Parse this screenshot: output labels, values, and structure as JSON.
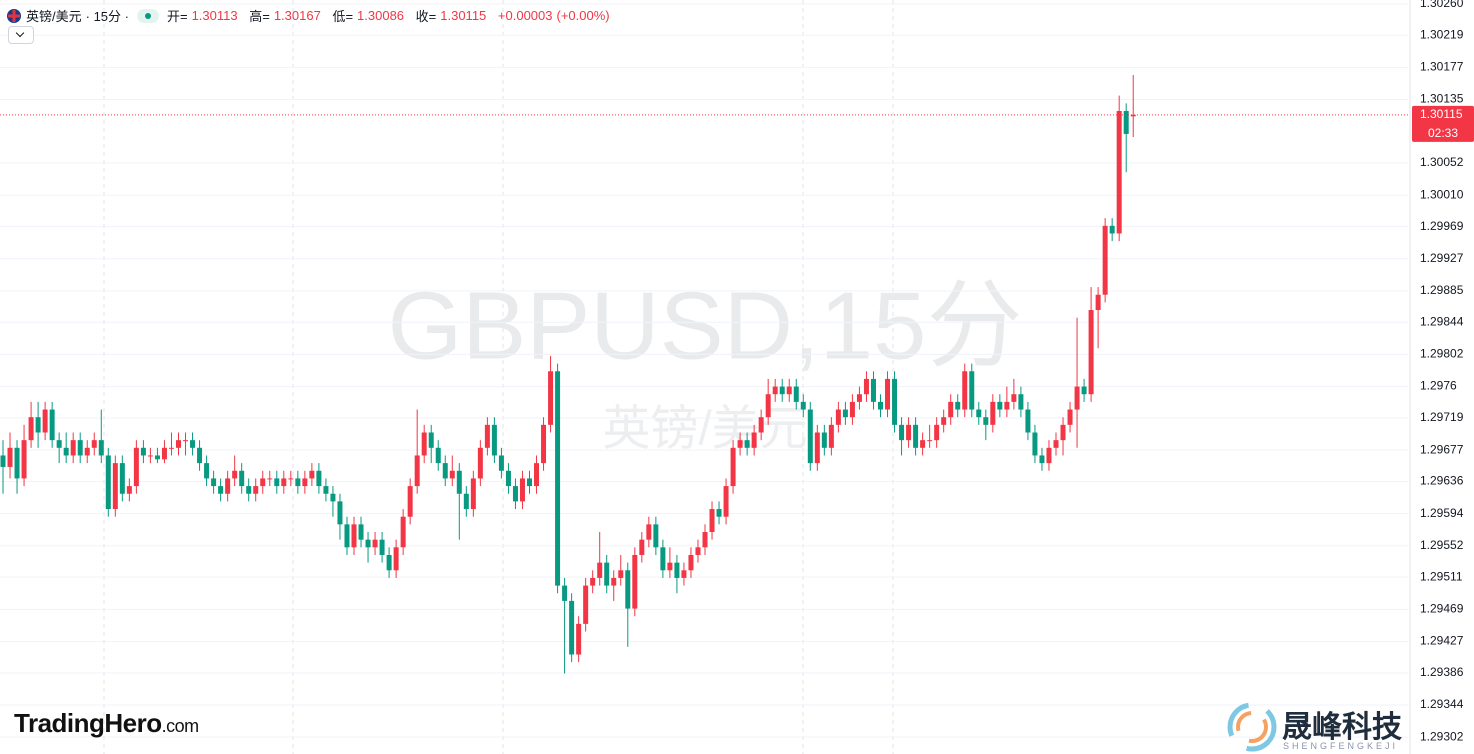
{
  "chart_data": {
    "type": "candlestick",
    "symbol": "英镑/美元",
    "interval": "· 15分 ·",
    "ohlc_labels": [
      "开=",
      "高=",
      "低=",
      "收="
    ],
    "header_values": [
      1.30113,
      1.30167,
      1.30086,
      1.30115
    ],
    "change": {
      "value": 3e-05,
      "label": "+0.00003"
    },
    "change_pct": {
      "value": 0,
      "label": "(+0.00%)"
    },
    "watermark": "GBPUSD,15分",
    "watermark_sub": "英镑/美元",
    "last_price": 1.30115,
    "countdown": "02:33",
    "up_color": "#f23645",
    "down_color": "#089981",
    "ylim": [
      1.2928,
      1.30265
    ],
    "yticks": [
      {
        "value": 1.3026,
        "label": "1.30260"
      },
      1.30219,
      1.30177,
      1.30135,
      1.30052,
      {
        "value": 1.3001,
        "label": "1.30010"
      },
      1.29969,
      1.29927,
      1.29885,
      1.29844,
      1.29802,
      1.2976,
      1.29719,
      1.29677,
      1.29636,
      1.29594,
      1.29552,
      1.29511,
      1.29469,
      1.29427,
      1.29386,
      1.29344,
      1.29302
    ],
    "grid": true,
    "brand_left": "TradingHero",
    "brand_left_suffix": ".com",
    "brand_right": "晟峰科技",
    "brand_right_sub": "SHENGFENGKEJI",
    "candles": [
      [
        1.2967,
        1.2969,
        1.2962,
        1.29655
      ],
      [
        1.29655,
        1.297,
        1.2964,
        1.2968
      ],
      [
        1.2968,
        1.2969,
        1.2962,
        1.2964
      ],
      [
        1.2964,
        1.2971,
        1.2963,
        1.2969
      ],
      [
        1.2969,
        1.2974,
        1.2968,
        1.2972
      ],
      [
        1.2972,
        1.2974,
        1.2968,
        1.297
      ],
      [
        1.297,
        1.2974,
        1.2969,
        1.2973
      ],
      [
        1.2973,
        1.2974,
        1.2968,
        1.2969
      ],
      [
        1.2969,
        1.297,
        1.2966,
        1.2968
      ],
      [
        1.2968,
        1.297,
        1.2966,
        1.2967
      ],
      [
        1.2967,
        1.297,
        1.2966,
        1.2969
      ],
      [
        1.2969,
        1.297,
        1.2966,
        1.2967
      ],
      [
        1.2967,
        1.2969,
        1.2966,
        1.2968
      ],
      [
        1.2968,
        1.297,
        1.2967,
        1.2969
      ],
      [
        1.2969,
        1.2973,
        1.2966,
        1.2967
      ],
      [
        1.2967,
        1.2968,
        1.2959,
        1.296
      ],
      [
        1.296,
        1.2967,
        1.2959,
        1.2966
      ],
      [
        1.2966,
        1.2967,
        1.2961,
        1.2962
      ],
      [
        1.2962,
        1.2964,
        1.2961,
        1.2963
      ],
      [
        1.2963,
        1.2969,
        1.2962,
        1.2968
      ],
      [
        1.2968,
        1.2969,
        1.2966,
        1.2967
      ],
      [
        1.2967,
        1.2968,
        1.2966,
        1.2967
      ],
      [
        1.2967,
        1.2968,
        1.2966,
        1.29665
      ],
      [
        1.29665,
        1.2969,
        1.2966,
        1.2968
      ],
      [
        1.2968,
        1.297,
        1.2967,
        1.2968
      ],
      [
        1.2968,
        1.297,
        1.2967,
        1.2969
      ],
      [
        1.2969,
        1.297,
        1.2967,
        1.2969
      ],
      [
        1.2969,
        1.297,
        1.2967,
        1.2968
      ],
      [
        1.2968,
        1.2969,
        1.2965,
        1.2966
      ],
      [
        1.2966,
        1.2967,
        1.2963,
        1.2964
      ],
      [
        1.2964,
        1.2965,
        1.2962,
        1.2963
      ],
      [
        1.2963,
        1.2964,
        1.2961,
        1.2962
      ],
      [
        1.2962,
        1.2965,
        1.2961,
        1.2964
      ],
      [
        1.2964,
        1.2967,
        1.2963,
        1.2965
      ],
      [
        1.2965,
        1.2966,
        1.2962,
        1.2963
      ],
      [
        1.2963,
        1.2964,
        1.2961,
        1.2962
      ],
      [
        1.2962,
        1.2964,
        1.2961,
        1.2963
      ],
      [
        1.2963,
        1.2965,
        1.2962,
        1.2964
      ],
      [
        1.2964,
        1.2965,
        1.2963,
        1.2964
      ],
      [
        1.2964,
        1.2965,
        1.2962,
        1.2963
      ],
      [
        1.2963,
        1.2965,
        1.2962,
        1.2964
      ],
      [
        1.2964,
        1.2965,
        1.2963,
        1.2964
      ],
      [
        1.2964,
        1.2965,
        1.2962,
        1.2963
      ],
      [
        1.2963,
        1.2965,
        1.2962,
        1.2964
      ],
      [
        1.2964,
        1.2966,
        1.2963,
        1.2965
      ],
      [
        1.2965,
        1.2966,
        1.2962,
        1.2963
      ],
      [
        1.2963,
        1.2964,
        1.2961,
        1.2962
      ],
      [
        1.2962,
        1.2963,
        1.2959,
        1.2961
      ],
      [
        1.2961,
        1.2962,
        1.2956,
        1.2958
      ],
      [
        1.2958,
        1.2959,
        1.2954,
        1.2955
      ],
      [
        1.2955,
        1.2959,
        1.2954,
        1.2958
      ],
      [
        1.2958,
        1.2959,
        1.2955,
        1.2956
      ],
      [
        1.2956,
        1.2957,
        1.2953,
        1.2955
      ],
      [
        1.2955,
        1.2957,
        1.2954,
        1.2956
      ],
      [
        1.2956,
        1.2957,
        1.2953,
        1.2954
      ],
      [
        1.2954,
        1.2955,
        1.2951,
        1.2952
      ],
      [
        1.2952,
        1.2956,
        1.2951,
        1.2955
      ],
      [
        1.2955,
        1.296,
        1.2954,
        1.2959
      ],
      [
        1.2959,
        1.2964,
        1.2958,
        1.2963
      ],
      [
        1.2963,
        1.2973,
        1.2962,
        1.2967
      ],
      [
        1.2967,
        1.2971,
        1.2966,
        1.297
      ],
      [
        1.297,
        1.2971,
        1.2966,
        1.2968
      ],
      [
        1.2968,
        1.2969,
        1.2965,
        1.2966
      ],
      [
        1.2966,
        1.2967,
        1.2963,
        1.2964
      ],
      [
        1.2964,
        1.2967,
        1.2963,
        1.2965
      ],
      [
        1.2965,
        1.2966,
        1.2956,
        1.2962
      ],
      [
        1.2962,
        1.2963,
        1.2959,
        1.296
      ],
      [
        1.296,
        1.2965,
        1.2959,
        1.2964
      ],
      [
        1.2964,
        1.2969,
        1.2963,
        1.2968
      ],
      [
        1.2968,
        1.2972,
        1.2967,
        1.2971
      ],
      [
        1.2971,
        1.2972,
        1.2966,
        1.2967
      ],
      [
        1.2967,
        1.2968,
        1.2964,
        1.2965
      ],
      [
        1.2965,
        1.2966,
        1.2962,
        1.2963
      ],
      [
        1.2963,
        1.2964,
        1.296,
        1.2961
      ],
      [
        1.2961,
        1.2965,
        1.296,
        1.2964
      ],
      [
        1.2964,
        1.2965,
        1.2962,
        1.2963
      ],
      [
        1.2963,
        1.2967,
        1.2962,
        1.2966
      ],
      [
        1.2966,
        1.2972,
        1.2965,
        1.2971
      ],
      [
        1.2971,
        1.298,
        1.297,
        1.2978
      ],
      [
        1.2978,
        1.2979,
        1.2949,
        1.295
      ],
      [
        1.295,
        1.2951,
        1.29385,
        1.2948
      ],
      [
        1.2948,
        1.2949,
        1.294,
        1.2941
      ],
      [
        1.2941,
        1.2946,
        1.294,
        1.2945
      ],
      [
        1.2945,
        1.2951,
        1.2944,
        1.295
      ],
      [
        1.295,
        1.2952,
        1.2949,
        1.2951
      ],
      [
        1.2951,
        1.2957,
        1.295,
        1.2953
      ],
      [
        1.2953,
        1.2954,
        1.2949,
        1.295
      ],
      [
        1.295,
        1.2952,
        1.2948,
        1.2951
      ],
      [
        1.2951,
        1.2954,
        1.295,
        1.2952
      ],
      [
        1.2952,
        1.2953,
        1.2942,
        1.2947
      ],
      [
        1.2947,
        1.2955,
        1.2946,
        1.2954
      ],
      [
        1.2954,
        1.2957,
        1.2953,
        1.2956
      ],
      [
        1.2956,
        1.2959,
        1.2955,
        1.2958
      ],
      [
        1.2958,
        1.2959,
        1.2954,
        1.2955
      ],
      [
        1.2955,
        1.2956,
        1.2951,
        1.2952
      ],
      [
        1.2952,
        1.2955,
        1.2951,
        1.2953
      ],
      [
        1.2953,
        1.2954,
        1.2949,
        1.2951
      ],
      [
        1.2951,
        1.2953,
        1.295,
        1.2952
      ],
      [
        1.2952,
        1.2955,
        1.2951,
        1.2954
      ],
      [
        1.2954,
        1.2956,
        1.2953,
        1.2955
      ],
      [
        1.2955,
        1.2958,
        1.2954,
        1.2957
      ],
      [
        1.2957,
        1.2961,
        1.2956,
        1.296
      ],
      [
        1.296,
        1.2961,
        1.2958,
        1.2959
      ],
      [
        1.2959,
        1.2964,
        1.2958,
        1.2963
      ],
      [
        1.2963,
        1.2969,
        1.2962,
        1.2968
      ],
      [
        1.2968,
        1.297,
        1.2967,
        1.2969
      ],
      [
        1.2969,
        1.297,
        1.2967,
        1.2968
      ],
      [
        1.2968,
        1.2971,
        1.2967,
        1.297
      ],
      [
        1.297,
        1.2973,
        1.2969,
        1.2972
      ],
      [
        1.2972,
        1.2977,
        1.2971,
        1.2975
      ],
      [
        1.2975,
        1.2977,
        1.2974,
        1.2976
      ],
      [
        1.2976,
        1.2977,
        1.2974,
        1.2975
      ],
      [
        1.2975,
        1.2977,
        1.2974,
        1.2976
      ],
      [
        1.2976,
        1.2977,
        1.2973,
        1.2974
      ],
      [
        1.2974,
        1.2975,
        1.2972,
        1.2973
      ],
      [
        1.2973,
        1.2974,
        1.2965,
        1.2966
      ],
      [
        1.2966,
        1.2971,
        1.2965,
        1.297
      ],
      [
        1.297,
        1.2971,
        1.2967,
        1.2968
      ],
      [
        1.2968,
        1.2972,
        1.2967,
        1.2971
      ],
      [
        1.2971,
        1.2974,
        1.297,
        1.2973
      ],
      [
        1.2973,
        1.2974,
        1.2971,
        1.2972
      ],
      [
        1.2972,
        1.2975,
        1.2971,
        1.2974
      ],
      [
        1.2974,
        1.2976,
        1.2973,
        1.2975
      ],
      [
        1.2975,
        1.2978,
        1.2974,
        1.2977
      ],
      [
        1.2977,
        1.2978,
        1.2973,
        1.2974
      ],
      [
        1.2974,
        1.2975,
        1.2972,
        1.2973
      ],
      [
        1.2973,
        1.2978,
        1.2972,
        1.2977
      ],
      [
        1.2977,
        1.2978,
        1.297,
        1.2971
      ],
      [
        1.2971,
        1.2972,
        1.2967,
        1.2969
      ],
      [
        1.2969,
        1.2972,
        1.2968,
        1.2971
      ],
      [
        1.2971,
        1.2972,
        1.2967,
        1.2968
      ],
      [
        1.2968,
        1.297,
        1.2967,
        1.2969
      ],
      [
        1.2969,
        1.2971,
        1.2968,
        1.2969
      ],
      [
        1.2969,
        1.2972,
        1.2968,
        1.2971
      ],
      [
        1.2971,
        1.2973,
        1.297,
        1.2972
      ],
      [
        1.2972,
        1.2975,
        1.2971,
        1.2974
      ],
      [
        1.2974,
        1.2975,
        1.2972,
        1.2973
      ],
      [
        1.2973,
        1.2979,
        1.2972,
        1.2978
      ],
      [
        1.2978,
        1.2979,
        1.2972,
        1.2973
      ],
      [
        1.2973,
        1.2974,
        1.2971,
        1.2972
      ],
      [
        1.2972,
        1.2973,
        1.2969,
        1.2971
      ],
      [
        1.2971,
        1.2975,
        1.297,
        1.2974
      ],
      [
        1.2974,
        1.2975,
        1.2972,
        1.2973
      ],
      [
        1.2973,
        1.2976,
        1.2972,
        1.2974
      ],
      [
        1.2974,
        1.2977,
        1.2973,
        1.2975
      ],
      [
        1.2975,
        1.2976,
        1.2972,
        1.2973
      ],
      [
        1.2973,
        1.2974,
        1.2969,
        1.297
      ],
      [
        1.297,
        1.2971,
        1.2966,
        1.2967
      ],
      [
        1.2967,
        1.2968,
        1.2965,
        1.2966
      ],
      [
        1.2966,
        1.2969,
        1.2965,
        1.2968
      ],
      [
        1.2968,
        1.297,
        1.2967,
        1.2969
      ],
      [
        1.2969,
        1.2972,
        1.2967,
        1.2971
      ],
      [
        1.2971,
        1.2974,
        1.297,
        1.2973
      ],
      [
        1.2973,
        1.2985,
        1.2968,
        1.2976
      ],
      [
        1.2976,
        1.2977,
        1.2974,
        1.2975
      ],
      [
        1.2975,
        1.2989,
        1.2974,
        1.2986
      ],
      [
        1.2986,
        1.2989,
        1.2981,
        1.2988
      ],
      [
        1.2988,
        1.2998,
        1.2987,
        1.2997
      ],
      [
        1.2997,
        1.2998,
        1.2995,
        1.2996
      ],
      [
        1.2996,
        1.3014,
        1.2995,
        1.3012
      ],
      [
        1.3012,
        1.3013,
        1.3004,
        1.3009
      ],
      [
        1.30113,
        1.30167,
        1.30086,
        1.30115
      ]
    ]
  }
}
